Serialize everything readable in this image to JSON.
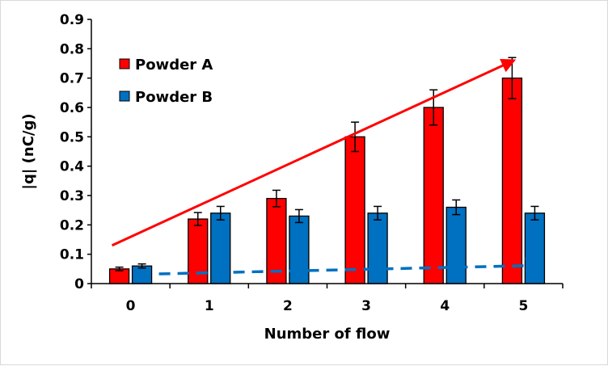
{
  "chart_data": {
    "type": "bar",
    "title": "",
    "xlabel": "Number of flow",
    "ylabel": "|q|  (nC/g)",
    "categories": [
      "0",
      "1",
      "2",
      "3",
      "4",
      "5"
    ],
    "ylim": [
      0,
      0.9
    ],
    "yticks": [
      "0",
      "0.1",
      "0.2",
      "0.3",
      "0.4",
      "0.5",
      "0.6",
      "0.7",
      "0.8",
      "0.9"
    ],
    "grid": false,
    "legend_position": "top-left",
    "series": [
      {
        "name": "Powder A",
        "color": "#ff0000",
        "values": [
          0.05,
          0.22,
          0.29,
          0.5,
          0.6,
          0.7
        ],
        "errors": [
          0.006,
          0.022,
          0.028,
          0.05,
          0.06,
          0.07
        ]
      },
      {
        "name": "Powder B",
        "color": "#0070c0",
        "values": [
          0.06,
          0.24,
          0.23,
          0.24,
          0.26,
          0.24
        ],
        "errors": [
          0.007,
          0.023,
          0.022,
          0.023,
          0.025,
          0.023
        ]
      }
    ],
    "trend_lines": [
      {
        "series": "Powder A",
        "style": "solid",
        "color": "#ff0000",
        "from": {
          "x": "0",
          "y": 0.13
        },
        "to": {
          "x": "5",
          "y": 0.76
        }
      },
      {
        "series": "Powder B",
        "style": "dashed",
        "color": "#0070c0",
        "from": {
          "x": "0",
          "y": 0.033
        },
        "to": {
          "x": "5",
          "y": 0.062
        }
      }
    ]
  }
}
